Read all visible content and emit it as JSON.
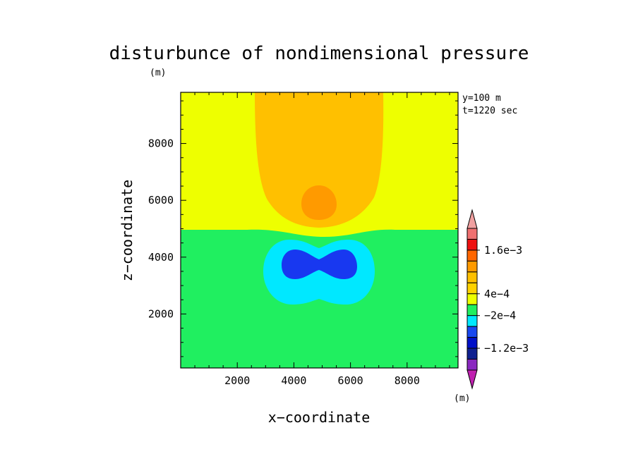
{
  "chart_data": {
    "type": "contour",
    "title": "disturbunce of nondimensional pressure",
    "unit_top": "(m)",
    "unit_bottom": "(m)",
    "xlabel": "x−coordinate",
    "ylabel": "z−coordinate",
    "info_line1": "y=100  m",
    "info_line2": "t=1220 sec",
    "xlim": [
      0,
      9800
    ],
    "ylim": [
      100,
      9800
    ],
    "x_ticks": [
      2000,
      4000,
      6000,
      8000
    ],
    "x_tick_labels": [
      "2000",
      "4000",
      "6000",
      "8000"
    ],
    "y_ticks": [
      2000,
      4000,
      6000,
      8000
    ],
    "y_tick_labels": [
      "2000",
      "4000",
      "6000",
      "8000"
    ],
    "grid": false,
    "legend_position": "right",
    "levels": [
      {
        "color": "#c020b0",
        "range": "< -1.4e-3"
      },
      {
        "color": "#8a28c0",
        "range": "-1.4e-3 .. -1.2e-3"
      },
      {
        "color": "#102090",
        "range": "-1.2e-3 .. -1.0e-3"
      },
      {
        "color": "#0010c8",
        "range": "-1.0e-3 .. -8e-4"
      },
      {
        "color": "#1848f0",
        "range": "-8e-4 .. -4e-4"
      },
      {
        "color": "#00e8ff",
        "range": "-4e-4 .. -2e-4"
      },
      {
        "color": "#20ef60",
        "range": "-2e-4 .. 0"
      },
      {
        "color": "#eeff00",
        "range": "0 .. 2e-4"
      },
      {
        "color": "#ffd200",
        "range": "2e-4 .. 4e-4"
      },
      {
        "color": "#ffc000",
        "range": "4e-4 .. 8e-4"
      },
      {
        "color": "#ff9a00",
        "range": "8e-4 .. 1.0e-3"
      },
      {
        "color": "#ff6600",
        "range": "1.0e-3 .. 1.4e-3"
      },
      {
        "color": "#ee1010",
        "range": "1.4e-3 .. 1.6e-3"
      },
      {
        "color": "#f07070",
        "range": "1.6e-3 .. 1.8e-3"
      },
      {
        "color": "#f0a0a0",
        "range": "> 1.8e-3"
      }
    ],
    "colorbar_labels": [
      "1.6e−3",
      "4e−4",
      "−2e−4",
      "−1.2e−3"
    ]
  }
}
